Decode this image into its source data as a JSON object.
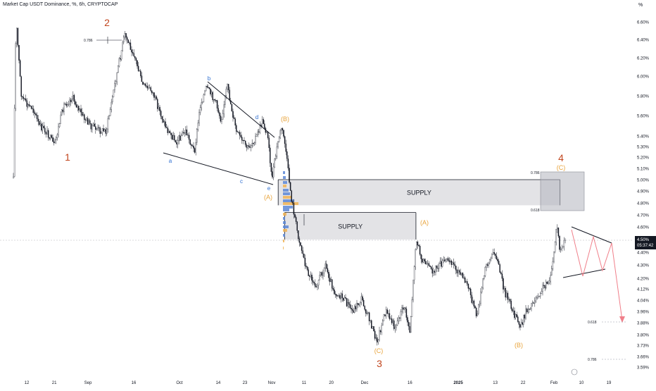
{
  "header": {
    "title": "Market Cap USDT Dominance, %, 6h, CRYPTOCAP",
    "unit": "%"
  },
  "colors": {
    "candle": "#131722",
    "wave_major": "#c1451d",
    "wave_abc": "#e8a43c",
    "wave_minor": "#2f6fd1",
    "zone_fill": "#e3e3e6",
    "zone_border": "#131722",
    "gray_zone": "#b2b5be",
    "projection": "#f07f8a",
    "price_badge": "#131722",
    "fib_line": "#9598a1",
    "volume_blue": "#5c87d6",
    "volume_orange": "#f0b354"
  },
  "chart_data": {
    "type": "candlestick",
    "title": "Market Cap USDT Dominance, %, 6h, CRYPTOCAP",
    "ylabel": "%",
    "ylim": [
      3.55,
      6.75
    ],
    "y_scale": "log",
    "grid": false,
    "y_ticks": [
      "6.60%",
      "6.40%",
      "6.20%",
      "6.00%",
      "5.80%",
      "5.60%",
      "5.40%",
      "5.30%",
      "5.20%",
      "5.10%",
      "5.00%",
      "4.90%",
      "4.80%",
      "4.70%",
      "4.60%",
      "4.50%",
      "4.40%",
      "4.30%",
      "4.20%",
      "4.12%",
      "4.04%",
      "3.96%",
      "3.88%",
      "3.80%",
      "3.73%",
      "3.66%",
      "3.59%"
    ],
    "x_ticks": [
      "12",
      "21",
      "Sep",
      "16",
      "Oct",
      "14",
      "23",
      "Nov",
      "11",
      "20",
      "Dec",
      "16",
      "2025",
      "13",
      "22",
      "Feb",
      "10",
      "19"
    ],
    "series": [
      {
        "type": "close",
        "x": [
          "2024-08-07",
          "2024-08-08",
          "2024-08-10",
          "2024-08-12",
          "2024-08-14",
          "2024-08-16",
          "2024-08-19",
          "2024-08-21",
          "2024-08-24",
          "2024-08-27",
          "2024-08-30",
          "2024-09-02",
          "2024-09-05",
          "2024-09-07",
          "2024-09-10",
          "2024-09-13",
          "2024-09-16",
          "2024-09-19",
          "2024-09-22",
          "2024-09-25",
          "2024-09-27",
          "2024-09-30",
          "2024-10-03",
          "2024-10-06",
          "2024-10-08",
          "2024-10-10",
          "2024-10-13",
          "2024-10-15",
          "2024-10-17",
          "2024-10-20",
          "2024-10-22",
          "2024-10-24",
          "2024-10-27",
          "2024-10-29",
          "2024-10-31",
          "2024-11-01",
          "2024-11-03",
          "2024-11-04",
          "2024-11-05",
          "2024-11-07",
          "2024-11-09",
          "2024-11-12",
          "2024-11-15",
          "2024-11-18",
          "2024-11-21",
          "2024-11-24",
          "2024-11-27",
          "2024-11-30",
          "2024-12-03",
          "2024-12-05",
          "2024-12-08",
          "2024-12-11",
          "2024-12-14",
          "2024-12-16",
          "2024-12-18",
          "2024-12-20",
          "2024-12-23",
          "2024-12-26",
          "2024-12-29",
          "2025-01-01",
          "2025-01-04",
          "2025-01-07",
          "2025-01-10",
          "2025-01-13",
          "2025-01-16",
          "2025-01-19",
          "2025-01-21",
          "2025-01-23",
          "2025-01-26",
          "2025-01-29",
          "2025-01-31",
          "2025-02-02",
          "2025-02-03",
          "2025-02-05"
        ],
        "y": [
          5.05,
          6.62,
          5.8,
          5.7,
          5.68,
          5.5,
          5.42,
          5.3,
          5.7,
          5.78,
          5.6,
          5.5,
          5.45,
          5.45,
          5.95,
          6.45,
          6.25,
          5.9,
          5.85,
          5.6,
          5.45,
          5.35,
          5.45,
          5.25,
          5.7,
          5.88,
          5.75,
          5.55,
          5.9,
          5.45,
          5.35,
          5.28,
          5.4,
          5.55,
          5.35,
          5.0,
          5.35,
          5.48,
          5.35,
          4.85,
          4.55,
          4.25,
          4.15,
          4.3,
          4.1,
          4.05,
          3.96,
          4.05,
          3.88,
          3.75,
          3.96,
          3.85,
          4.0,
          3.82,
          4.5,
          4.35,
          4.25,
          4.3,
          4.35,
          4.25,
          4.15,
          3.92,
          4.3,
          4.4,
          4.1,
          3.95,
          3.85,
          3.96,
          4.05,
          4.15,
          4.2,
          4.62,
          4.4,
          4.5
        ]
      }
    ],
    "annotations": {
      "wave_major": [
        {
          "label": "1",
          "x": "2024-08-21",
          "y": 5.22
        },
        {
          "label": "2",
          "x": "2024-09-07",
          "y": 6.5
        },
        {
          "label": "3",
          "x": "2024-12-05",
          "y": 3.62
        },
        {
          "label": "4",
          "x": "2025-02-03",
          "y": 5.12
        }
      ],
      "wave_abc": [
        {
          "label": "(A)",
          "x": "2024-10-30",
          "y": 4.87
        },
        {
          "label": "(B)",
          "x": "2024-11-01",
          "y": 5.5
        },
        {
          "label": "(A)",
          "x": "2024-12-18",
          "y": 4.65
        },
        {
          "label": "(C)",
          "x": "2024-12-05",
          "y": 3.73
        },
        {
          "label": "(B)",
          "x": "2025-01-20",
          "y": 3.78
        },
        {
          "label": "(C)",
          "x": "2025-02-03",
          "y": 5.05
        }
      ],
      "wave_minor": [
        {
          "label": "b",
          "x": "2024-10-11",
          "y": 5.9
        },
        {
          "label": "a",
          "x": "2024-09-27",
          "y": 5.12
        },
        {
          "label": "c",
          "x": "2024-10-24",
          "y": 5.0
        },
        {
          "label": "d",
          "x": "2024-10-26",
          "y": 5.45
        },
        {
          "label": "e",
          "x": "2024-10-30",
          "y": 4.93
        }
      ],
      "zones": [
        {
          "label": "SUPPLY",
          "x0": "2024-11-03",
          "x1": "2025-02-03",
          "y0": 4.78,
          "y1": 5.0
        },
        {
          "label": "SUPPLY",
          "x0": "2024-11-05",
          "x1": "2024-12-18",
          "y0": 4.5,
          "y1": 4.72
        }
      ],
      "fib_labels": [
        {
          "label": "0.786",
          "y": 6.42
        },
        {
          "label": "0.786",
          "y": 5.06
        },
        {
          "label": "0.618",
          "y": 4.75
        },
        {
          "label": "0.618",
          "y": 3.9
        },
        {
          "label": "0.786",
          "y": 3.65
        }
      ]
    },
    "last_price": "4.50%",
    "countdown": "05:37:42"
  }
}
